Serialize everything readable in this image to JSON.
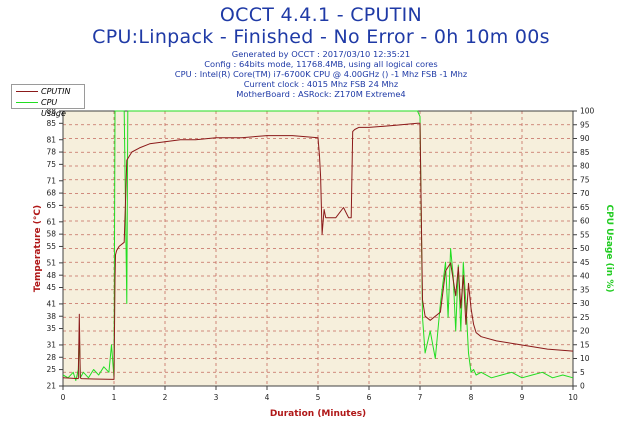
{
  "header": {
    "title_line1": "OCCT 4.4.1 - CPUTIN",
    "title_line2": "CPU:Linpack - Finished - No Error - 0h 10m 00s",
    "info_lines": [
      "Generated by OCCT : 2017/03/10 12:35:21",
      "Config : 64bits mode, 11768.4MB, using all logical cores",
      "CPU : Intel(R) Core(TM) i7-6700K CPU @ 4.00GHz () -1 Mhz FSB -1 Mhz",
      "Current clock : 4015 Mhz FSB 24 Mhz",
      "MotherBoard : ASRock: Z170M Extreme4"
    ]
  },
  "colors": {
    "cputin": "#8b1a1a",
    "cpu_usage": "#22dd22",
    "plot_bg": "#f6efdc",
    "grid": "#c46a5e",
    "title": "#1f3aa6",
    "left_axis_label": "#b01818",
    "right_axis_label": "#22cc22",
    "x_axis_label": "#b01818"
  },
  "chart_data": {
    "type": "line",
    "xlabel": "Duration (Minutes)",
    "ylabel": "Temperature (°C)",
    "y2label": "CPU Usage (in %)",
    "xlim": [
      0,
      10
    ],
    "ylim": [
      21,
      88
    ],
    "y2lim": [
      0,
      100
    ],
    "x_ticks": [
      0,
      1,
      2,
      3,
      4,
      5,
      6,
      7,
      8,
      9,
      10
    ],
    "y_ticks": [
      21,
      25,
      28,
      31,
      35,
      38,
      41,
      45,
      48,
      51,
      55,
      58,
      61,
      65,
      68,
      71,
      75,
      78,
      81,
      85,
      88
    ],
    "y2_ticks": [
      0,
      5,
      10,
      15,
      20,
      25,
      30,
      35,
      40,
      45,
      50,
      55,
      60,
      65,
      70,
      75,
      80,
      85,
      90,
      95,
      100
    ],
    "grid": true,
    "legend_position": "top-left",
    "series": [
      {
        "name": "CPUTIN",
        "axis": "left",
        "color": "#8b1a1a",
        "x": [
          0,
          0.3,
          0.32,
          0.34,
          0.36,
          0.6,
          1.0,
          1.02,
          1.03,
          1.05,
          1.1,
          1.2,
          1.25,
          1.3,
          1.35,
          1.5,
          1.7,
          2.0,
          2.3,
          2.6,
          3.0,
          3.5,
          4.0,
          4.5,
          5.0,
          5.03,
          5.05,
          5.08,
          5.12,
          5.15,
          5.2,
          5.35,
          5.5,
          5.6,
          5.65,
          5.68,
          5.72,
          5.8,
          6.0,
          6.5,
          6.95,
          7.0,
          7.05,
          7.1,
          7.2,
          7.4,
          7.5,
          7.6,
          7.7,
          7.75,
          7.8,
          7.85,
          7.9,
          7.95,
          8.0,
          8.05,
          8.1,
          8.2,
          8.5,
          9.0,
          9.5,
          10.0
        ],
        "y": [
          23,
          22.8,
          38.5,
          23,
          22.8,
          22.7,
          22.6,
          47,
          53,
          54,
          55,
          56,
          76,
          77,
          78,
          79,
          80,
          80.5,
          81,
          81,
          81.5,
          81.5,
          82,
          82,
          81.5,
          77,
          72,
          58,
          64,
          62,
          62,
          62,
          64.5,
          62,
          62,
          83,
          83.5,
          84,
          84,
          84.5,
          85,
          85,
          42,
          38,
          37,
          39,
          49,
          51,
          43,
          50,
          40,
          48,
          36,
          46,
          40,
          36,
          34,
          33,
          32,
          31,
          30,
          29.5
        ]
      },
      {
        "name": "CPU Usage",
        "axis": "right",
        "color": "#22dd22",
        "x": [
          0,
          0.1,
          0.2,
          0.25,
          0.3,
          0.32,
          0.34,
          0.4,
          0.5,
          0.6,
          0.7,
          0.8,
          0.9,
          0.95,
          1.0,
          1.02,
          1.03,
          1.1,
          1.2,
          1.25,
          1.27,
          1.3,
          1.35,
          1.5,
          2.0,
          3.0,
          4.0,
          5.0,
          6.0,
          6.9,
          6.95,
          7.0,
          7.05,
          7.1,
          7.2,
          7.3,
          7.4,
          7.5,
          7.55,
          7.6,
          7.65,
          7.7,
          7.75,
          7.8,
          7.85,
          7.9,
          7.95,
          8.0,
          8.05,
          8.1,
          8.2,
          8.4,
          8.6,
          8.8,
          9.0,
          9.2,
          9.4,
          9.6,
          9.8,
          10.0
        ],
        "y": [
          4,
          3,
          5,
          2,
          6,
          20,
          3,
          5,
          3,
          6,
          4,
          7,
          5,
          15,
          3,
          100,
          100,
          100,
          100,
          30,
          100,
          100,
          100,
          100,
          100,
          100,
          100,
          100,
          100,
          100,
          100,
          98,
          25,
          12,
          20,
          10,
          30,
          45,
          25,
          50,
          40,
          20,
          44,
          20,
          45,
          30,
          12,
          5,
          6,
          4,
          5,
          3,
          4,
          5,
          3,
          4,
          5,
          3,
          4,
          3
        ]
      }
    ]
  }
}
